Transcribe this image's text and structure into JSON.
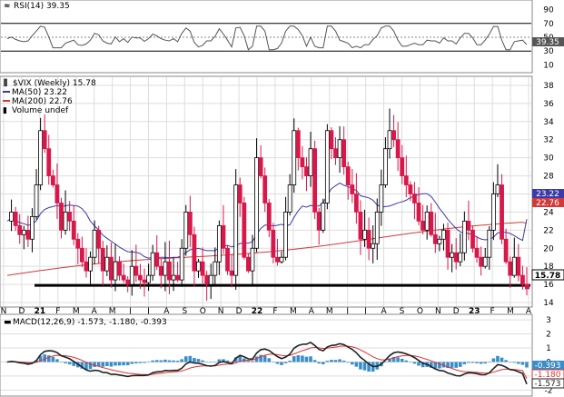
{
  "rsi": {
    "label": "RSI(14) 39.35",
    "current_box": "39.35",
    "ticks": [
      {
        "v": 90,
        "t": "90"
      },
      {
        "v": 70,
        "t": "70"
      },
      {
        "v": 50,
        "t": "50"
      },
      {
        "v": 30,
        "t": "30"
      },
      {
        "v": 10,
        "t": "10"
      }
    ],
    "levels": {
      "upper": 70,
      "lower": 30,
      "mid": 50
    }
  },
  "price": {
    "title": "$VIX (Weekly) 15.78",
    "legend": [
      {
        "text": "MA(50) 23.22",
        "color": "#3a3aa8"
      },
      {
        "text": "MA(200) 22.76",
        "color": "#d03a3a"
      },
      {
        "text": "Volume undef",
        "color": "#555555"
      }
    ],
    "ticks": [
      {
        "v": 38,
        "t": "38"
      },
      {
        "v": 36,
        "t": "36"
      },
      {
        "v": 34,
        "t": "34"
      },
      {
        "v": 32,
        "t": "32"
      },
      {
        "v": 30,
        "t": "30"
      },
      {
        "v": 28,
        "t": "28"
      },
      {
        "v": 26,
        "t": "26"
      },
      {
        "v": 24,
        "t": "24"
      },
      {
        "v": 22,
        "t": "22"
      },
      {
        "v": 20,
        "t": "20"
      },
      {
        "v": 18,
        "t": "18"
      },
      {
        "v": 16,
        "t": "16"
      },
      {
        "v": 14,
        "t": "14"
      }
    ],
    "box_ma50": "23.22",
    "box_ma200": "22.76",
    "box_last": "15.78",
    "support_level": 15.9
  },
  "x_axis": {
    "labels": [
      "N",
      "D",
      "21",
      "F",
      "M",
      "A",
      "M",
      "J",
      "J",
      "A",
      "S",
      "O",
      "N",
      "D",
      "22",
      "F",
      "M",
      "A",
      "M",
      "J",
      "J",
      "A",
      "S",
      "O",
      "N",
      "D",
      "23",
      "F",
      "M",
      "A"
    ]
  },
  "macd": {
    "label": "MACD(12,26,9) -1.573, -1.180, -0.393",
    "ticks": [
      {
        "v": 3,
        "t": "3"
      },
      {
        "v": 2,
        "t": "2"
      },
      {
        "v": 1,
        "t": "1"
      },
      {
        "v": 0,
        "t": "0"
      },
      {
        "v": -1,
        "t": "-1"
      },
      {
        "v": -2,
        "t": "-2"
      }
    ],
    "box_hist": "-0.393",
    "box_signal": "-1.180",
    "box_macd": "-1.573"
  },
  "colors": {
    "up": "#ffffff",
    "down": "#d8184a",
    "ma50": "#3a3aa8",
    "ma200": "#d03a3a",
    "hist": "#3a8ec8",
    "macd": "#222222",
    "signal": "#e03030",
    "grid": "#dddddd"
  },
  "chart_data": {
    "type": "candlestick",
    "title": "$VIX (Weekly)",
    "ylim": [
      13.5,
      39
    ],
    "x_months": [
      "N",
      "D",
      "21",
      "F",
      "M",
      "A",
      "M",
      "J",
      "J",
      "A",
      "S",
      "O",
      "N",
      "D",
      "22",
      "F",
      "M",
      "A",
      "M",
      "J",
      "J",
      "A",
      "S",
      "O",
      "N",
      "D",
      "23",
      "F",
      "M",
      "A"
    ],
    "weekly_close_path": [
      23,
      24,
      22.5,
      21.5,
      22,
      21,
      23.5,
      27,
      33,
      31,
      28,
      27,
      25,
      22,
      24,
      23,
      21,
      20,
      18.5,
      17.5,
      19,
      22,
      20,
      17.5,
      19,
      16.5,
      18.5,
      17,
      16.5,
      16,
      18,
      17,
      16.5,
      16.2,
      17,
      19.5,
      18,
      17,
      18.5,
      16.5,
      17,
      16.5,
      20,
      24,
      21.5,
      17.5,
      18.5,
      17,
      16,
      17,
      18.5,
      22.5,
      20,
      17.5,
      17,
      27,
      25,
      19,
      17.5,
      20,
      30,
      28,
      25,
      22,
      19,
      18.5,
      19,
      24,
      27,
      33,
      30,
      29,
      28,
      31,
      24,
      22,
      25,
      33,
      31,
      30,
      32,
      29,
      27,
      26,
      24,
      21,
      22,
      20,
      20.5,
      24,
      27,
      31,
      33,
      32,
      30,
      28,
      27,
      26,
      25,
      23,
      22,
      24,
      21.5,
      20.5,
      21,
      22,
      19,
      19.5,
      18.5,
      19.5,
      23,
      22,
      20,
      19,
      18,
      19,
      22,
      26,
      27,
      21,
      18.5,
      17,
      19,
      17,
      16,
      15.78
    ],
    "ma50_last": 23.22,
    "ma200_last": 22.76,
    "last": 15.78,
    "rsi_last": 39.35,
    "macd": {
      "macd": -1.573,
      "signal": -1.18,
      "histogram": -0.393
    }
  }
}
